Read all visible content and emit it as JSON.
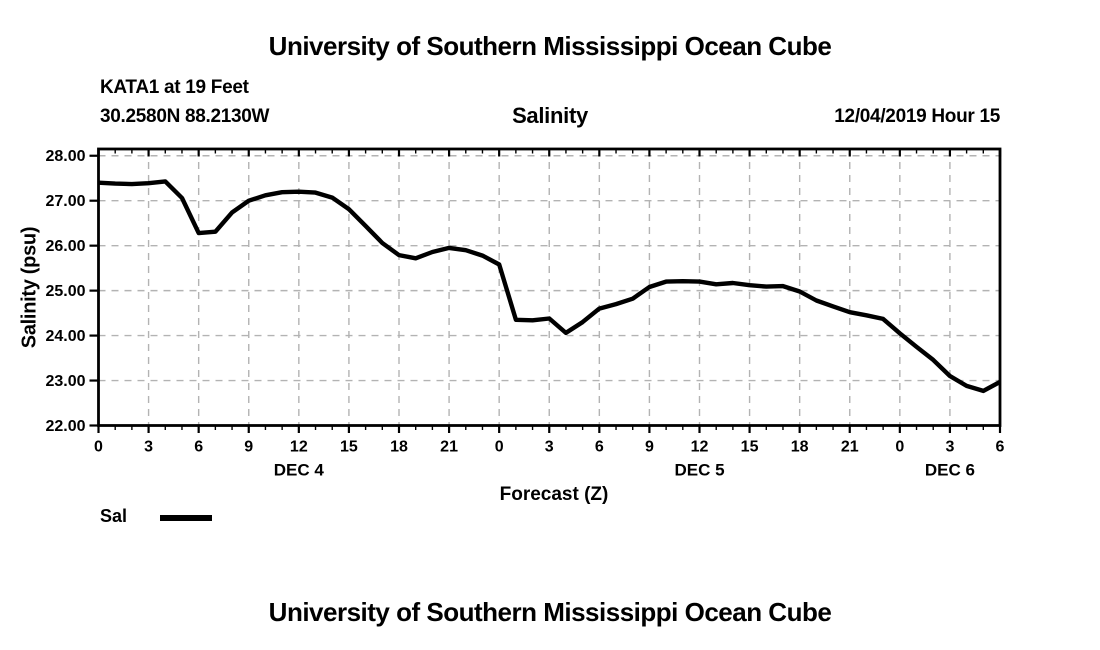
{
  "page": {
    "top_title": "University of Southern Mississippi Ocean Cube",
    "footer_title": "University of Southern Mississippi Ocean Cube"
  },
  "header": {
    "station_line1": "KATA1 at 19 Feet",
    "station_line2": "30.2580N 88.2130W",
    "plot_title": "Salinity",
    "datetime": "12/04/2019 Hour 15"
  },
  "chart_data": {
    "type": "line",
    "title": "Salinity",
    "station": "KATA1 at 19 Feet",
    "location": "30.2580N 88.2130W",
    "forecast_time": "12/04/2019 Hour 15",
    "xlabel": "Forecast (Z)",
    "ylabel": "Salinity (psu)",
    "ylim": [
      22.0,
      28.15
    ],
    "ytick_values": [
      22,
      23,
      24,
      25,
      26,
      27,
      28
    ],
    "ytick_labels": [
      "22.00",
      "23.00",
      "24.00",
      "25.00",
      "26.00",
      "27.00",
      "28.00"
    ],
    "x_total_hours": 54,
    "xtick_major_step": 3,
    "xtick_minor_step": 1,
    "xtick_labels": [
      "0",
      "3",
      "6",
      "9",
      "12",
      "15",
      "18",
      "21",
      "0",
      "3",
      "6",
      "9",
      "12",
      "15",
      "18",
      "21",
      "0",
      "3",
      "6"
    ],
    "day_labels": [
      {
        "text": "DEC 4",
        "hour": 12
      },
      {
        "text": "DEC 5",
        "hour": 36
      },
      {
        "text": "DEC 6",
        "hour": 51
      }
    ],
    "grid": true,
    "grid_color": "#b3b3b3",
    "line_color": "#000000",
    "legend": {
      "label": "Sal"
    },
    "series": [
      {
        "name": "Sal",
        "x": [
          0,
          1,
          2,
          3,
          4,
          5,
          6,
          7,
          8,
          9,
          10,
          11,
          12,
          13,
          14,
          15,
          16,
          17,
          18,
          19,
          20,
          21,
          22,
          23,
          24,
          25,
          26,
          27,
          28,
          29,
          30,
          31,
          32,
          33,
          34,
          35,
          36,
          37,
          38,
          39,
          40,
          41,
          42,
          43,
          44,
          45,
          46,
          47,
          48,
          49,
          50,
          51,
          52,
          53,
          54
        ],
        "values": [
          27.4,
          27.38,
          27.37,
          27.39,
          27.43,
          27.06,
          26.28,
          26.31,
          26.74,
          27.0,
          27.12,
          27.19,
          27.2,
          27.18,
          27.07,
          26.81,
          26.44,
          26.06,
          25.79,
          25.72,
          25.86,
          25.95,
          25.9,
          25.78,
          25.58,
          24.35,
          24.34,
          24.38,
          24.06,
          24.3,
          24.6,
          24.7,
          24.82,
          25.08,
          25.2,
          25.21,
          25.2,
          25.14,
          25.17,
          25.12,
          25.09,
          25.1,
          24.98,
          24.78,
          24.65,
          24.52,
          24.45,
          24.37,
          24.05,
          23.75,
          23.46,
          23.1,
          22.88,
          22.77,
          22.97
        ]
      }
    ]
  }
}
